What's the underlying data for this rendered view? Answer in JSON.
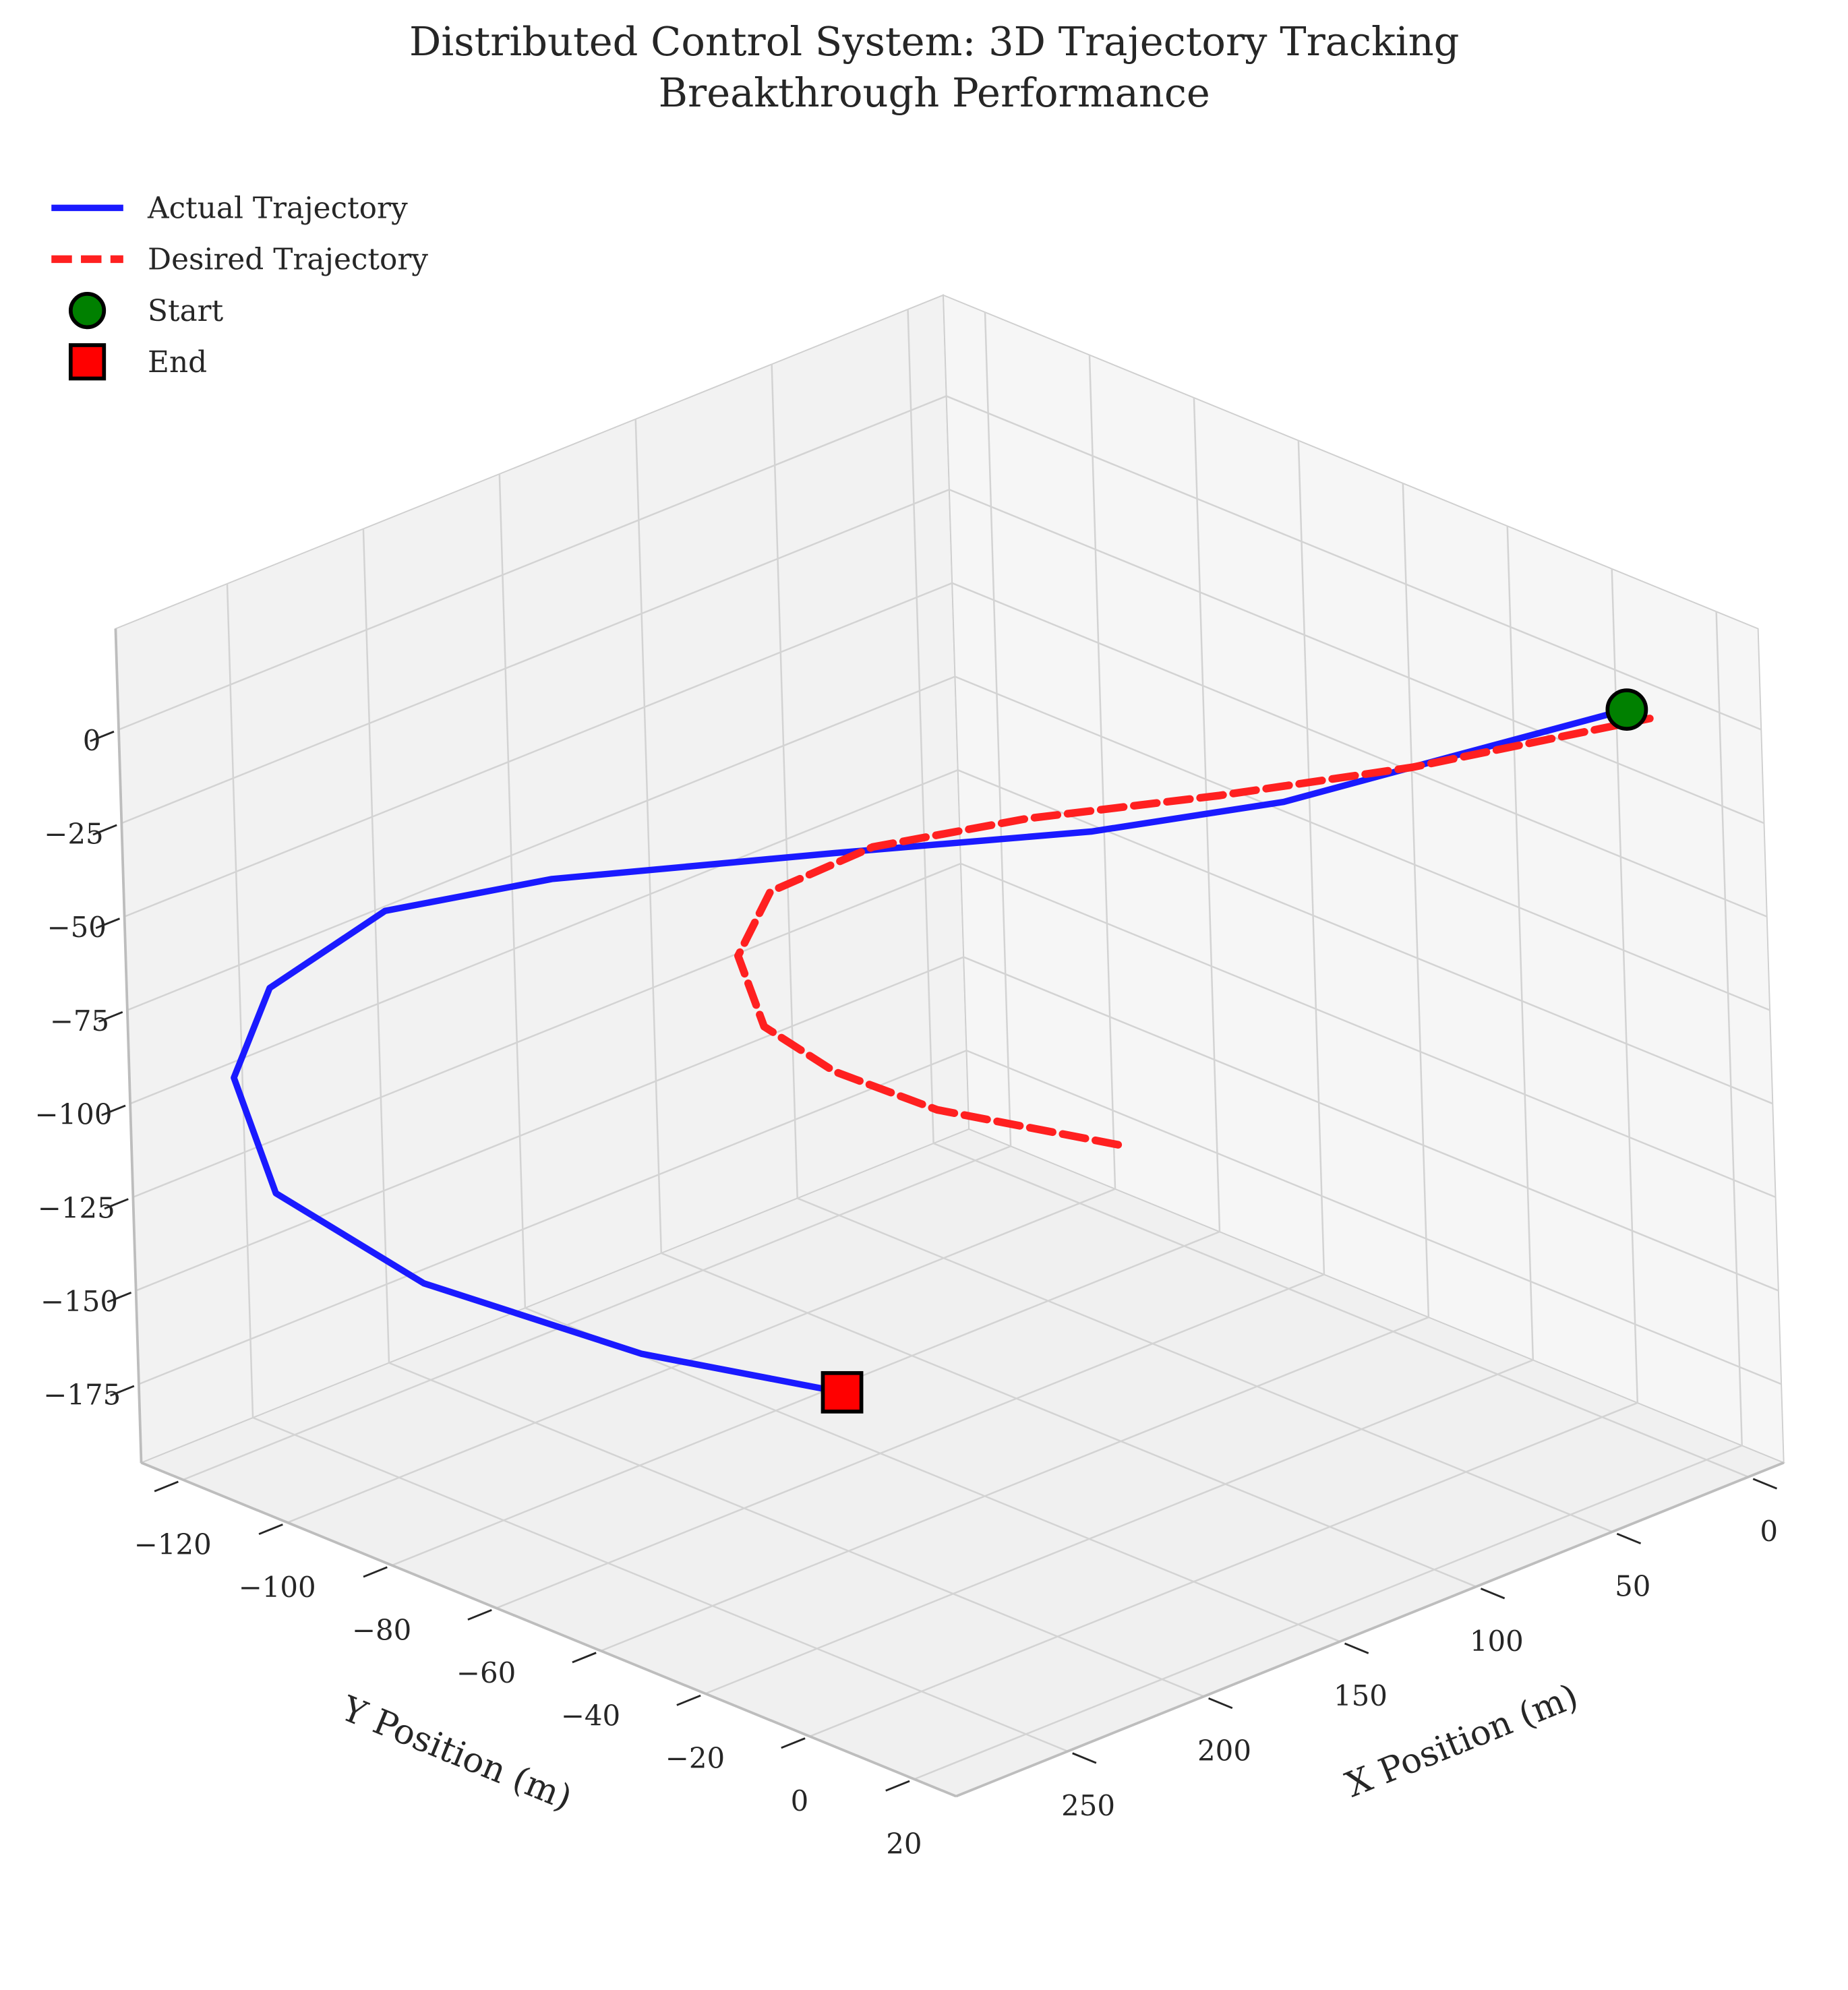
{
  "chart_data": {
    "type": "line3d",
    "title": [
      "Distributed Control System: 3D Trajectory Tracking",
      "Breakthrough Performance"
    ],
    "xlabel": "X Position (m)",
    "ylabel": "Y Position (m)",
    "xlim": [
      -13,
      291
    ],
    "ylim": [
      -128,
      28
    ],
    "zlim": [
      -196,
      27
    ],
    "xticks": [
      0,
      50,
      100,
      150,
      200,
      250
    ],
    "yticks": [
      {
        "value": -120,
        "label": "−120"
      },
      {
        "value": -100,
        "label": "−100"
      },
      {
        "value": -80,
        "label": "−80"
      },
      {
        "value": -60,
        "label": "−60"
      },
      {
        "value": -40,
        "label": "−40"
      },
      {
        "value": -20,
        "label": "−20"
      },
      0,
      20
    ],
    "zticks": [
      0,
      {
        "value": -25,
        "label": "−25"
      },
      {
        "value": -50,
        "label": "−50"
      },
      {
        "value": -75,
        "label": "−75"
      },
      {
        "value": -100,
        "label": "−100"
      },
      {
        "value": -125,
        "label": "−125"
      },
      {
        "value": -150,
        "label": "−150"
      },
      {
        "value": -175,
        "label": "−175"
      }
    ],
    "grid": true,
    "legend": "upper left",
    "series": [
      {
        "name": "Actual Trajectory",
        "color": "#1a1aff",
        "linestyle": "solid",
        "x": [
          2.8,
          39.6,
          73.5,
          105.3,
          145.4,
          192,
          220.1,
          259.1,
          289,
          285,
          275,
          262,
          250
        ],
        "y": [
          10.5,
          -4.3,
          -18.8,
          -39.3,
          -67.8,
          -97.8,
          -115.3,
          -117.3,
          -108.8,
          -103.5,
          -80.7,
          -45.8,
          -13.6
        ],
        "z": [
          0,
          -10.3,
          -20.7,
          -31,
          -41.3,
          -51.7,
          -62,
          -72.3,
          -82.7,
          -111.7,
          -125.7,
          -128.4,
          -123.8
        ]
      },
      {
        "name": "Desired Trajectory",
        "color": "#ff2020",
        "linestyle": "dashed",
        "x": [
          2.6,
          55.2,
          90.3,
          123,
          151,
          176.9,
          198.5,
          212.3,
          206.2,
          191.2,
          159.6
        ],
        "y": [
          14.8,
          -3.4,
          -22.2,
          -42.2,
          -57.3,
          -63.6,
          -58.7,
          -46.7,
          -36.6,
          -24.9,
          -5.9
        ],
        "z": [
          0,
          -8,
          -16,
          -24,
          -32,
          -40,
          -48,
          -56,
          -64,
          -72,
          -80
        ]
      },
      {
        "name": "Start",
        "color": "#008000",
        "marker": "circle",
        "x": [
          2.8
        ],
        "y": [
          10.5
        ],
        "z": [
          0
        ]
      },
      {
        "name": "End",
        "color": "#ff0000",
        "marker": "square",
        "x": [
          250
        ],
        "y": [
          -13.6
        ],
        "z": [
          -123.8
        ]
      }
    ]
  }
}
